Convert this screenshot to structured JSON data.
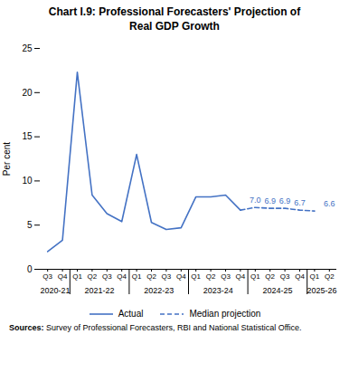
{
  "chart_data": {
    "type": "line",
    "title": "Chart I.9: Professional Forecasters' Projection of\nReal GDP Growth",
    "ylabel": "Per cent",
    "categories": [
      "Q3",
      "Q4",
      "Q1",
      "Q2",
      "Q3",
      "Q4",
      "Q1",
      "Q2",
      "Q3",
      "Q4",
      "Q1",
      "Q2",
      "Q3",
      "Q4",
      "Q1",
      "Q2",
      "Q3",
      "Q4",
      "Q1",
      "Q2"
    ],
    "x_groups": [
      {
        "label": "2020-21",
        "size": 2
      },
      {
        "label": "2021-22",
        "size": 4
      },
      {
        "label": "2022-23",
        "size": 4
      },
      {
        "label": "2023-24",
        "size": 4
      },
      {
        "label": "2024-25",
        "size": 4
      },
      {
        "label": "2025-26",
        "size": 2
      }
    ],
    "series": [
      {
        "name": "Actual",
        "color": "#4472C4",
        "line_style": "solid",
        "values": [
          2.0,
          3.3,
          22.3,
          8.4,
          6.3,
          5.4,
          13.0,
          5.3,
          4.5,
          4.7,
          8.2,
          8.2,
          8.4,
          6.7,
          null,
          null,
          null,
          null,
          null,
          null
        ]
      },
      {
        "name": "Median projection",
        "color": "#4472C4",
        "line_style": "dashed",
        "values": [
          null,
          null,
          null,
          null,
          null,
          null,
          null,
          null,
          null,
          null,
          null,
          null,
          null,
          6.7,
          7.0,
          6.9,
          6.9,
          6.7,
          6.6,
          null
        ]
      }
    ],
    "annotations": [
      {
        "x": 14,
        "y": 7.0,
        "label": "7.0"
      },
      {
        "x": 15,
        "y": 6.9,
        "label": "6.9"
      },
      {
        "x": 16,
        "y": 6.9,
        "label": "6.9"
      },
      {
        "x": 17,
        "y": 6.7,
        "label": "6.7"
      },
      {
        "x": 19,
        "y": 6.6,
        "label": "6.6"
      }
    ],
    "ylim": [
      0,
      25
    ],
    "yticks": [
      0,
      5,
      10,
      15,
      20,
      25
    ],
    "grid": false,
    "legend": "bottom",
    "source": {
      "bold": "Sources:",
      "text": "Survey of Professional Forecasters, RBI and National Statistical Office."
    }
  }
}
